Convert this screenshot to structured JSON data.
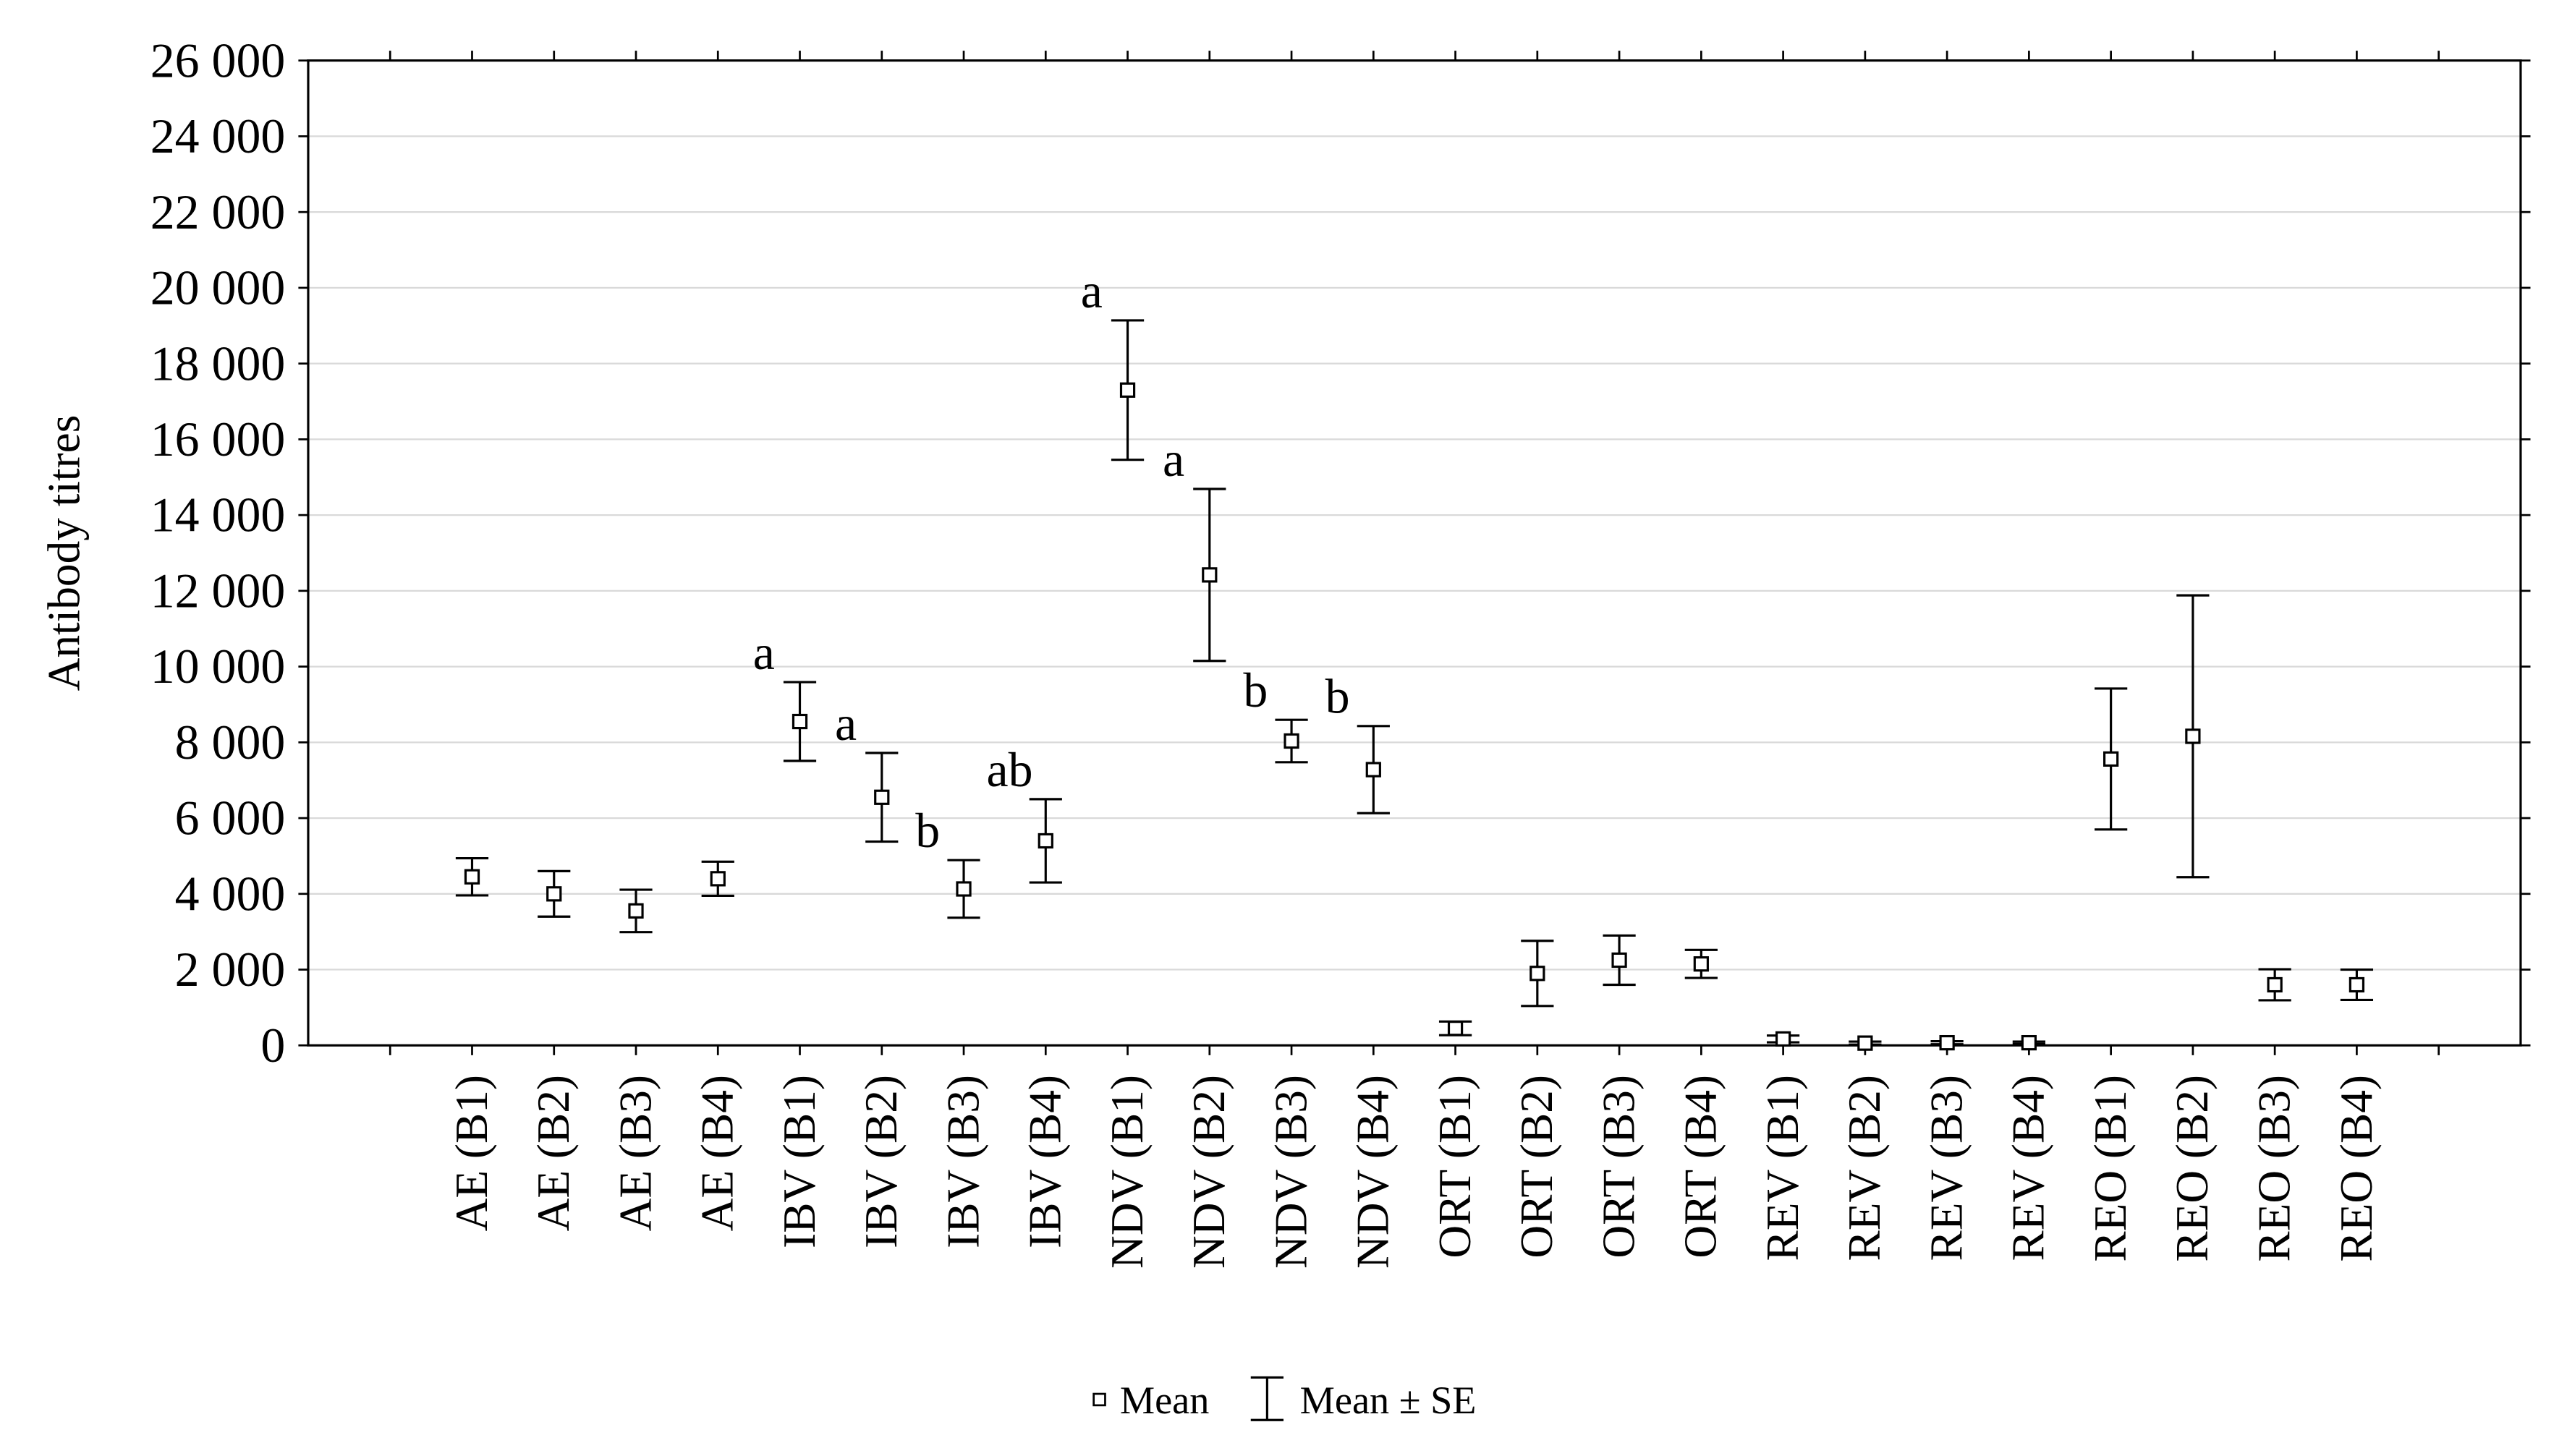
{
  "chart_data": {
    "type": "errorbar",
    "y_label": "Antibody titres",
    "categories": [
      "AE (B1)",
      "AE (B2)",
      "AE (B3)",
      "AE (B4)",
      "IBV (B1)",
      "IBV (B2)",
      "IBV (B3)",
      "IBV (B4)",
      "NDV (B1)",
      "NDV (B2)",
      "NDV (B3)",
      "NDV (B4)",
      "ORT (B1)",
      "ORT (B2)",
      "ORT (B3)",
      "ORT (B4)",
      "REV (B1)",
      "REV (B2)",
      "REV (B3)",
      "REV (B4)",
      "REO (B1)",
      "REO (B2)",
      "REO (B3)",
      "REO (B4)"
    ],
    "values": [
      4450,
      4000,
      3550,
      4400,
      8550,
      6550,
      4130,
      5400,
      17300,
      12420,
      8035,
      7280,
      450,
      1900,
      2250,
      2150,
      170,
      60,
      70,
      70,
      7560,
      8160,
      1600,
      1600
    ],
    "errors": [
      490,
      600,
      560,
      450,
      1040,
      1170,
      760,
      1100,
      1840,
      2270,
      560,
      1150,
      180,
      860,
      650,
      370,
      90,
      40,
      40,
      30,
      1860,
      3720,
      410,
      400
    ],
    "group_letters": [
      null,
      null,
      null,
      null,
      "a",
      "a",
      "b",
      "ab",
      "a",
      "a",
      "b",
      "b",
      null,
      null,
      null,
      null,
      null,
      null,
      null,
      null,
      null,
      null,
      null,
      null
    ],
    "legend": [
      "Mean",
      "Mean ± SE"
    ],
    "color": "#000000",
    "ylim": [
      0,
      26000
    ],
    "yticks": [
      0,
      {
        "value": 2000,
        "label": "2 000"
      },
      {
        "value": 4000,
        "label": "4 000"
      },
      {
        "value": 6000,
        "label": "6 000"
      },
      {
        "value": 8000,
        "label": "8 000"
      },
      {
        "value": 10000,
        "label": "10 000"
      },
      {
        "value": 12000,
        "label": "12 000"
      },
      {
        "value": 14000,
        "label": "14 000"
      },
      {
        "value": 16000,
        "label": "16 000"
      },
      {
        "value": 18000,
        "label": "18 000"
      },
      {
        "value": 20000,
        "label": "20 000"
      },
      {
        "value": 22000,
        "label": "22 000"
      },
      {
        "value": 24000,
        "label": "24 000"
      },
      {
        "value": 26000,
        "label": "26 000"
      }
    ],
    "grid": true
  }
}
